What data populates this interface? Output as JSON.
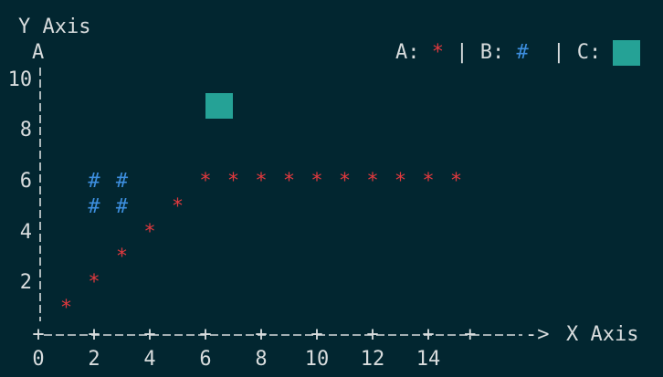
{
  "chart_data": {
    "type": "scatter",
    "ylabel": "Y Axis",
    "xlabel": "X Axis",
    "y_arrow": "A",
    "x_arrow": "->",
    "xlim": [
      0,
      15.5
    ],
    "ylim": [
      1,
      10
    ],
    "x_ticks": [
      0,
      2,
      4,
      6,
      8,
      10,
      12,
      14
    ],
    "y_ticks": [
      2,
      4,
      6,
      8,
      10
    ],
    "legend_position": "top-right",
    "legend_sep": "|",
    "series": [
      {
        "name": "A",
        "marker": "*",
        "color": "#e0393e",
        "points": [
          [
            1,
            1
          ],
          [
            2,
            2
          ],
          [
            3,
            3
          ],
          [
            4,
            4
          ],
          [
            5,
            5
          ],
          [
            6,
            6
          ],
          [
            7,
            6
          ],
          [
            8,
            6
          ],
          [
            9,
            6
          ],
          [
            10,
            6
          ],
          [
            11,
            6
          ],
          [
            12,
            6
          ],
          [
            13,
            6
          ],
          [
            14,
            6
          ],
          [
            15,
            6
          ]
        ]
      },
      {
        "name": "B",
        "marker": "#",
        "color": "#3d8fdf",
        "points": [
          [
            2,
            5
          ],
          [
            2,
            6
          ],
          [
            3,
            5
          ],
          [
            3,
            6
          ]
        ]
      },
      {
        "name": "C",
        "marker": "square",
        "color": "#25a296",
        "points": [
          [
            6.5,
            9
          ]
        ]
      }
    ]
  }
}
